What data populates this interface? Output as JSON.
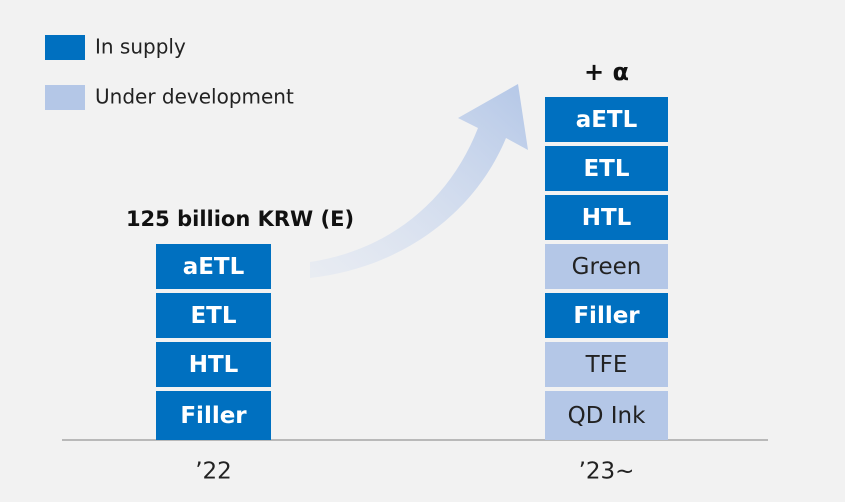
{
  "legend": [
    {
      "label": "In supply",
      "color": "#0070c0"
    },
    {
      "label": "Under development",
      "color": "#b4c7e7"
    }
  ],
  "columns": [
    {
      "header": "125 billion KRW (E)",
      "label": "’22",
      "blocks": [
        {
          "text": "aETL",
          "color": "#0070c0"
        },
        {
          "text": "ETL",
          "color": "#0070c0"
        },
        {
          "text": "HTL",
          "color": "#0070c0"
        },
        {
          "text": "Filler",
          "color": "#0070c0"
        }
      ]
    },
    {
      "header": "+ α",
      "label": "’23~",
      "blocks": [
        {
          "text": "aETL",
          "color": "#0070c0"
        },
        {
          "text": "ETL",
          "color": "#0070c0"
        },
        {
          "text": "HTL",
          "color": "#0070c0"
        },
        {
          "text": "Green",
          "color": "#b4c7e7"
        },
        {
          "text": "Filler",
          "color": "#0070c0"
        },
        {
          "text": "TFE",
          "color": "#b4c7e7"
        },
        {
          "text": "QD Ink",
          "color": "#b4c7e7"
        }
      ]
    }
  ]
}
